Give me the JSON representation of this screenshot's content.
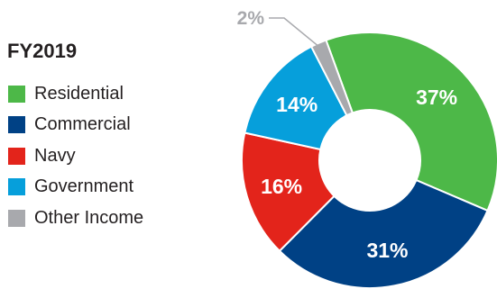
{
  "chart_data": {
    "type": "pie",
    "title": "FY2019",
    "donut": true,
    "legend_position": "left",
    "categories": [
      "Residential",
      "Commercial",
      "Navy",
      "Government",
      "Other Income"
    ],
    "values": [
      37,
      31,
      16,
      14,
      2
    ],
    "value_labels": [
      "37%",
      "31%",
      "16%",
      "14%",
      "2%"
    ],
    "colors": [
      "#4db848",
      "#004185",
      "#e3241b",
      "#069fdb",
      "#a8a9ad"
    ],
    "start_angle_deg": 340,
    "callout_color": "#a8a9ad"
  }
}
